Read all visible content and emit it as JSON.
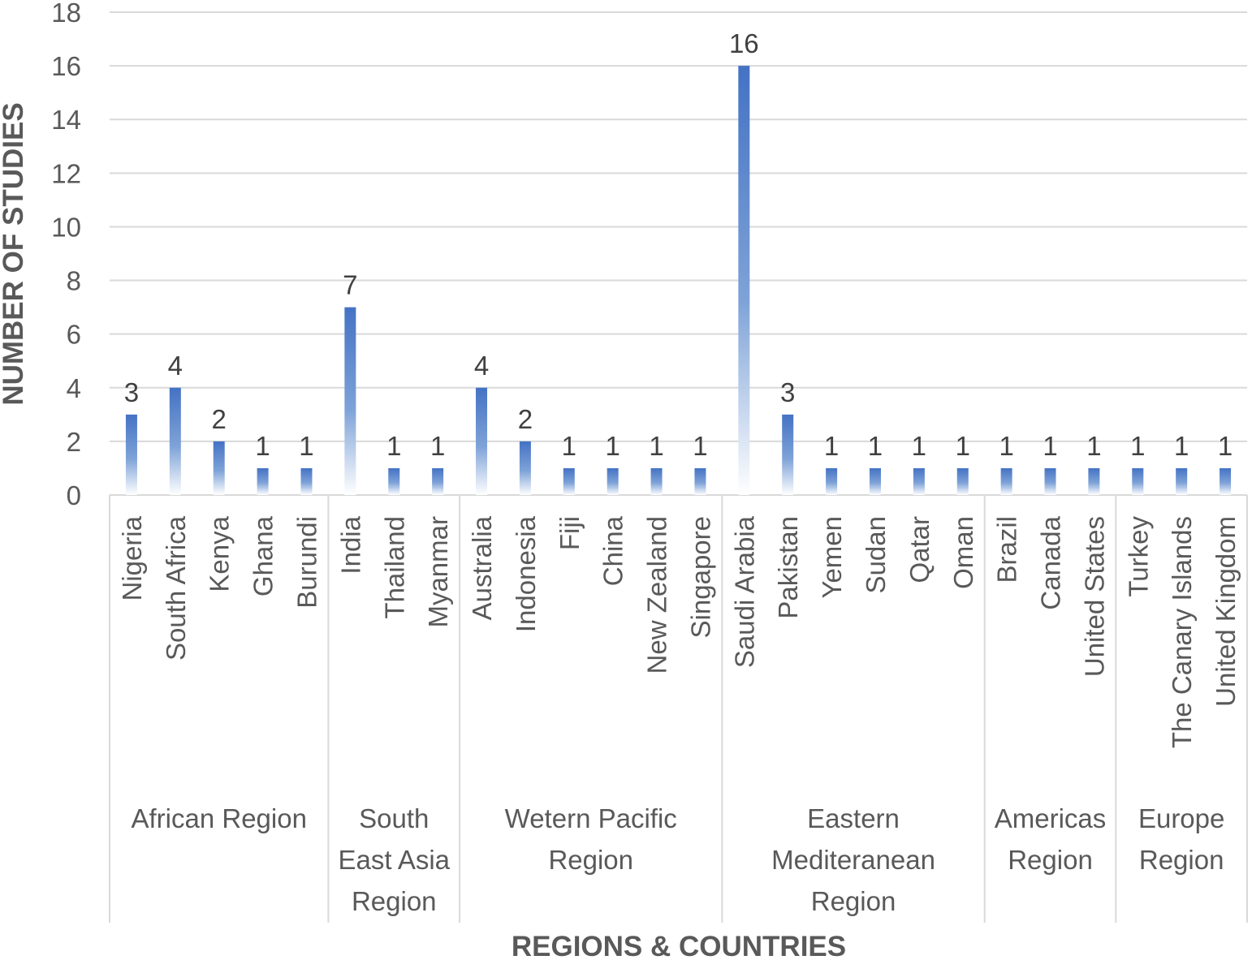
{
  "chart_data": {
    "type": "bar",
    "xlabel": "REGIONS & COUNTRIES",
    "ylabel": "NUMBER OF STUDIES",
    "ylim": [
      0,
      18
    ],
    "yticks": [
      "0",
      "2",
      "4",
      "6",
      "8",
      "10",
      "12",
      "14",
      "16",
      "18"
    ],
    "grid": true,
    "bar_color": "#4472c4",
    "groups": [
      {
        "name": "African Region",
        "lines": [
          "African Region"
        ],
        "categories": [
          "Nigeria",
          "South Africa",
          "Kenya",
          "Ghana",
          "Burundi"
        ],
        "values": [
          3,
          4,
          2,
          1,
          1
        ]
      },
      {
        "name": "South East Asia Region",
        "lines": [
          "South",
          "East Asia",
          "Region"
        ],
        "categories": [
          "India",
          "Thailand",
          "Myanmar"
        ],
        "values": [
          7,
          1,
          1
        ]
      },
      {
        "name": "Wetern Pacific Region",
        "lines": [
          "Wetern Pacific",
          "Region"
        ],
        "categories": [
          "Australia",
          "Indonesia",
          "Fiji",
          "China",
          "New Zealand",
          "Singapore"
        ],
        "values": [
          4,
          2,
          1,
          1,
          1,
          1
        ]
      },
      {
        "name": "Eastern Mediteranean Region",
        "lines": [
          "Eastern",
          "Mediteranean",
          "Region"
        ],
        "categories": [
          "Saudi Arabia",
          "Pakistan",
          "Yemen",
          "Sudan",
          "Qatar",
          "Oman"
        ],
        "values": [
          16,
          3,
          1,
          1,
          1,
          1
        ]
      },
      {
        "name": "Americas Region",
        "lines": [
          "Americas",
          "Region"
        ],
        "categories": [
          "Brazil",
          "Canada",
          "United States"
        ],
        "values": [
          1,
          1,
          1
        ]
      },
      {
        "name": "Europe Region",
        "lines": [
          "Europe",
          "Region"
        ],
        "categories": [
          "Turkey",
          "The Canary Islands",
          "United Kingdom"
        ],
        "values": [
          1,
          1,
          1
        ]
      }
    ]
  }
}
